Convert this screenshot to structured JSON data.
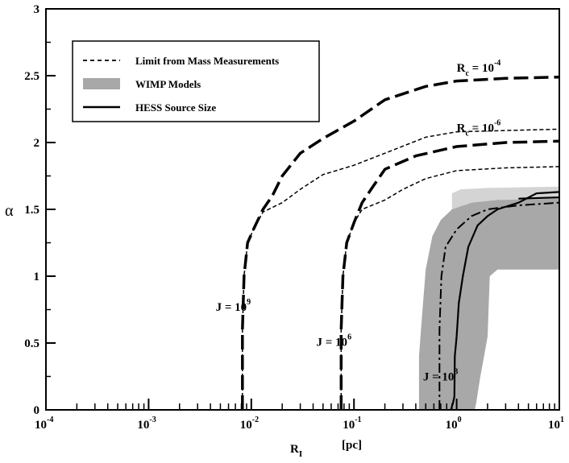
{
  "chart_data": {
    "type": "line",
    "title": "",
    "xlabel": "R",
    "xlabel_sub": "I",
    "xunit": "[pc]",
    "ylabel": "α",
    "xscale": "log",
    "xlim": [
      0.0001,
      10
    ],
    "ylim": [
      0,
      3
    ],
    "x_ticks": [
      {
        "value": 0.0001,
        "base": "10",
        "exp": "-4"
      },
      {
        "value": 0.001,
        "base": "10",
        "exp": "-3"
      },
      {
        "value": 0.01,
        "base": "10",
        "exp": "-2"
      },
      {
        "value": 0.1,
        "base": "10",
        "exp": "-1"
      },
      {
        "value": 1,
        "base": "10",
        "exp": "0"
      },
      {
        "value": 10,
        "base": "10",
        "exp": "1"
      }
    ],
    "y_ticks": [
      {
        "value": 0,
        "label": "0"
      },
      {
        "value": 0.5,
        "label": "0.5"
      },
      {
        "value": 1,
        "label": "1"
      },
      {
        "value": 1.5,
        "label": "1.5"
      },
      {
        "value": 2,
        "label": "2"
      },
      {
        "value": 2.5,
        "label": "2.5"
      },
      {
        "value": 3,
        "label": "3"
      }
    ],
    "grid": false,
    "legend": {
      "placement": "top-left",
      "entries": [
        {
          "label": "Limit from Mass Measurements",
          "style": "short-dash"
        },
        {
          "label": "WIMP Models",
          "style": "gray-band"
        },
        {
          "label": "HESS Source Size",
          "style": "solid"
        }
      ]
    },
    "colors": {
      "line": "#000000",
      "band_dark": "#a8a8a8",
      "band_light": "#d4d4d4"
    },
    "annotations": [
      {
        "base": "R",
        "sub": "c",
        "eq": " = 10",
        "exp": "-4",
        "x": 1.0,
        "y": 2.53
      },
      {
        "base": "R",
        "sub": "c",
        "eq": " = 10",
        "exp": "-6",
        "x": 1.0,
        "y": 2.08
      },
      {
        "base": "J",
        "sub": "",
        "eq": " = 10",
        "exp": "9",
        "x": 0.0045,
        "y": 0.74
      },
      {
        "base": "J",
        "sub": "",
        "eq": " = 10",
        "exp": "6",
        "x": 0.043,
        "y": 0.48
      },
      {
        "base": "J",
        "sub": "",
        "eq": " = 10",
        "exp": "3",
        "x": 0.47,
        "y": 0.22
      }
    ],
    "series": [
      {
        "style": "long-dash",
        "values": [
          [
            0.0082,
            0
          ],
          [
            0.0082,
            0.6
          ],
          [
            0.0085,
            1.0
          ],
          [
            0.0092,
            1.25
          ],
          [
            0.0105,
            1.35
          ],
          [
            0.013,
            1.5
          ],
          [
            0.016,
            1.6
          ],
          [
            0.02,
            1.75
          ],
          [
            0.03,
            1.92
          ],
          [
            0.05,
            2.03
          ],
          [
            0.1,
            2.16
          ],
          [
            0.2,
            2.32
          ],
          [
            0.5,
            2.42
          ],
          [
            1,
            2.46
          ],
          [
            3,
            2.48
          ],
          [
            10,
            2.49
          ]
        ]
      },
      {
        "style": "short-dash",
        "values": [
          [
            0.0082,
            0
          ],
          [
            0.0082,
            0.6
          ],
          [
            0.0085,
            1.0
          ],
          [
            0.0092,
            1.25
          ],
          [
            0.0105,
            1.35
          ],
          [
            0.013,
            1.48
          ],
          [
            0.02,
            1.55
          ],
          [
            0.03,
            1.65
          ],
          [
            0.05,
            1.76
          ],
          [
            0.1,
            1.83
          ],
          [
            0.2,
            1.92
          ],
          [
            0.5,
            2.04
          ],
          [
            1,
            2.08
          ],
          [
            3,
            2.09
          ],
          [
            10,
            2.1
          ]
        ]
      },
      {
        "style": "long-dash",
        "values": [
          [
            0.075,
            0
          ],
          [
            0.075,
            0.6
          ],
          [
            0.078,
            1.0
          ],
          [
            0.085,
            1.25
          ],
          [
            0.1,
            1.4
          ],
          [
            0.12,
            1.55
          ],
          [
            0.15,
            1.66
          ],
          [
            0.2,
            1.8
          ],
          [
            0.4,
            1.9
          ],
          [
            1,
            1.97
          ],
          [
            3,
            2.0
          ],
          [
            10,
            2.01
          ]
        ]
      },
      {
        "style": "short-dash",
        "values": [
          [
            0.075,
            0
          ],
          [
            0.075,
            0.6
          ],
          [
            0.078,
            1.0
          ],
          [
            0.085,
            1.25
          ],
          [
            0.1,
            1.4
          ],
          [
            0.12,
            1.5
          ],
          [
            0.2,
            1.57
          ],
          [
            0.3,
            1.65
          ],
          [
            0.5,
            1.73
          ],
          [
            1,
            1.79
          ],
          [
            3,
            1.81
          ],
          [
            10,
            1.82
          ]
        ]
      },
      {
        "style": "dash-dot",
        "values": [
          [
            0.68,
            0
          ],
          [
            0.68,
            0.6
          ],
          [
            0.71,
            1.0
          ],
          [
            0.78,
            1.22
          ],
          [
            1,
            1.35
          ],
          [
            1.4,
            1.45
          ],
          [
            2,
            1.5
          ],
          [
            4,
            1.53
          ],
          [
            10,
            1.55
          ]
        ]
      },
      {
        "style": "solid",
        "values": [
          [
            0.88,
            0
          ],
          [
            0.92,
            0.05
          ],
          [
            0.95,
            0.1
          ],
          [
            0.96,
            0.4
          ],
          [
            1.0,
            0.55
          ],
          [
            1.05,
            0.8
          ],
          [
            1.15,
            1.0
          ],
          [
            1.3,
            1.22
          ],
          [
            1.6,
            1.38
          ],
          [
            2,
            1.45
          ],
          [
            2.5,
            1.5
          ],
          [
            4,
            1.55
          ],
          [
            6,
            1.62
          ],
          [
            10,
            1.63
          ]
        ]
      },
      {
        "style": "solid",
        "values": [
          [
            4,
            1.58
          ],
          [
            10,
            1.59
          ]
        ]
      }
    ],
    "wimp_band": {
      "light": [
        [
          0.9,
          1.62
        ],
        [
          1.1,
          1.65
        ],
        [
          2,
          1.66
        ],
        [
          10,
          1.67
        ],
        [
          10,
          1.45
        ],
        [
          3,
          1.45
        ],
        [
          1.3,
          1.4
        ],
        [
          0.9,
          1.35
        ]
      ],
      "dark": {
        "left": [
          [
            0.43,
            0
          ],
          [
            0.43,
            0.4
          ],
          [
            0.46,
            0.7
          ],
          [
            0.5,
            1.05
          ],
          [
            0.58,
            1.3
          ],
          [
            0.7,
            1.42
          ],
          [
            0.9,
            1.5
          ],
          [
            1.4,
            1.55
          ],
          [
            2.5,
            1.57
          ],
          [
            10,
            1.58
          ]
        ],
        "right": [
          [
            10,
            1.05
          ],
          [
            2.5,
            1.05
          ],
          [
            2.1,
            1.0
          ],
          [
            2.0,
            0.55
          ],
          [
            1.85,
            0.4
          ],
          [
            1.7,
            0.25
          ],
          [
            1.55,
            0.05
          ],
          [
            1.5,
            0
          ]
        ]
      }
    }
  }
}
